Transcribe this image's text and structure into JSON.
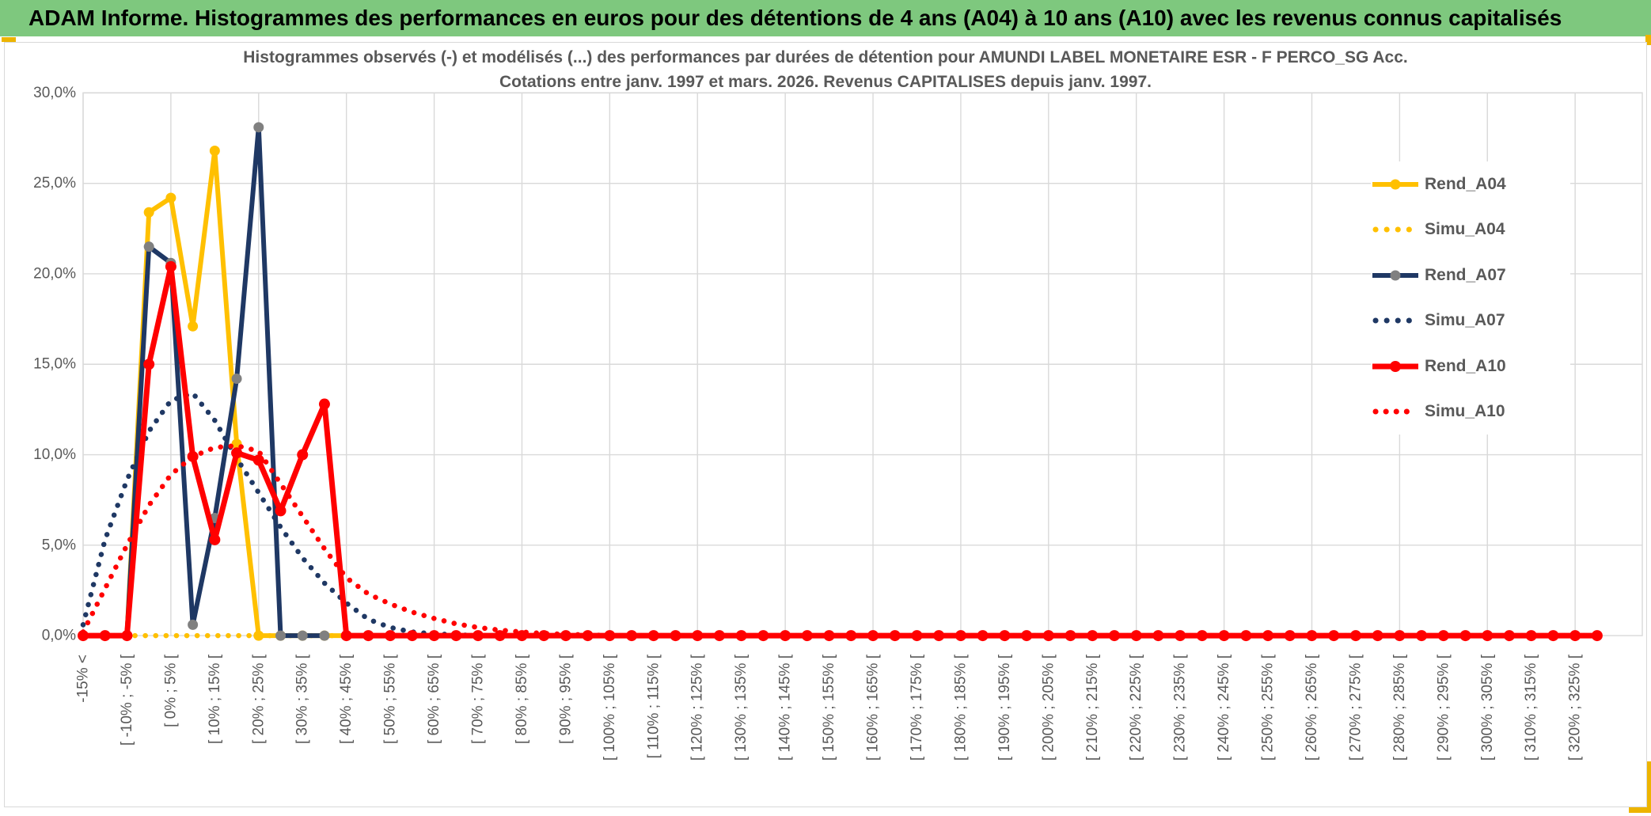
{
  "header": {
    "title": "ADAM Informe. Histogrammes des performances en euros pour des détentions de 4 ans (A04) à 10 ans (A10) avec les revenus connus capitalisés"
  },
  "chart_data": {
    "type": "line",
    "title_lines": [
      "Histogrammes observés (-) et modélisés (...) des performances par durées de détention pour AMUNDI LABEL MONETAIRE ESR - F PERCO_SG Acc.",
      "Cotations entre janv. 1997 et mars. 2026. Revenus CAPITALISES depuis janv. 1997."
    ],
    "ylim": [
      0,
      30
    ],
    "grid": true,
    "legend_position": "right-inside",
    "y_ticks": [
      "0,0%",
      "5,0%",
      "10,0%",
      "15,0%",
      "20,0%",
      "25,0%",
      "30,0%"
    ],
    "n_categories": 70,
    "label_step": 2,
    "x_labels": [
      "-15% <",
      "[ -10% ; -5% [",
      "[ 0% ; 5% [",
      "[ 10% ; 15% [",
      "[ 20% ; 25% [",
      "[ 30% ; 35% [",
      "[ 40% ; 45% [",
      "[ 50% ; 55% [",
      "[ 60% ; 65% [",
      "[ 70% ; 75% [",
      "[ 80% ; 85% [",
      "[ 90% ; 95% [",
      "[ 100% ; 105% [",
      "[ 110% ; 115% [",
      "[ 120% ; 125% [",
      "[ 130% ; 135% [",
      "[ 140% ; 145% [",
      "[ 150% ; 155% [",
      "[ 160% ; 165% [",
      "[ 170% ; 175% [",
      "[ 180% ; 185% [",
      "[ 190% ; 195% [",
      "[ 200% ; 205% [",
      "[ 210% ; 215% [",
      "[ 220% ; 225% [",
      "[ 230% ; 235% [",
      "[ 240% ; 245% [",
      "[ 250% ; 255% [",
      "[ 260% ; 265% [",
      "[ 270% ; 275% [",
      "[ 280% ; 285% [",
      "[ 290% ; 295% [",
      "[ 300% ; 305% [",
      "[ 310% ; 315% [",
      "[ 320% ; 325% ["
    ],
    "series": [
      {
        "name": "Rend_A04",
        "style": "solid",
        "color": "#FFC000",
        "marker_color": "#FFC000",
        "values": [
          0,
          0,
          0,
          23.4,
          24.2,
          17.1,
          26.8,
          10.6,
          0
        ],
        "pad": 0
      },
      {
        "name": "Simu_A04",
        "style": "dotted",
        "color": "#FFC000",
        "values": [
          0,
          0,
          0
        ],
        "pad": 0
      },
      {
        "name": "Rend_A07",
        "style": "solid",
        "color": "#1F3864",
        "marker_color": "#808080",
        "values": [
          0,
          0,
          0,
          21.5,
          20.6,
          0.6,
          6.5,
          14.2,
          28.1,
          0,
          0,
          0
        ],
        "pad": null
      },
      {
        "name": "Simu_A07",
        "style": "dotted",
        "color": "#1F3864",
        "values": [
          0.6,
          5.3,
          8.6,
          11.3,
          13,
          13.4,
          11.9,
          9.8,
          7.9,
          6,
          4.3,
          2.9,
          1.8,
          0.9,
          0.45,
          0.2,
          0.1,
          0.05
        ],
        "pad": 0
      },
      {
        "name": "Rend_A10",
        "style": "solid",
        "color": "#FF0000",
        "marker_color": "#FF0000",
        "values": [
          0,
          0,
          0,
          15,
          20.4,
          9.9,
          5.3,
          10.1,
          9.7,
          6.9,
          10,
          12.8,
          0
        ],
        "pad": 0
      },
      {
        "name": "Simu_A10",
        "style": "dotted",
        "color": "#FF0000",
        "values": [
          0.2,
          2.6,
          5,
          7.2,
          8.9,
          9.9,
          10.4,
          10.5,
          10.2,
          8.4,
          6.6,
          4.8,
          3.2,
          2.3,
          1.75,
          1.3,
          0.95,
          0.65,
          0.45,
          0.3,
          0.2,
          0.12,
          0.07,
          0.04
        ],
        "pad": 0
      }
    ]
  },
  "colors": {
    "header_bg": "#7EC87E",
    "accent_gold": "#EDB400",
    "grid": "#D9D9D9",
    "text": "#595959",
    "gold": "#FFC000",
    "navy": "#1F3864",
    "red": "#FF0000",
    "gray_marker": "#808080"
  }
}
